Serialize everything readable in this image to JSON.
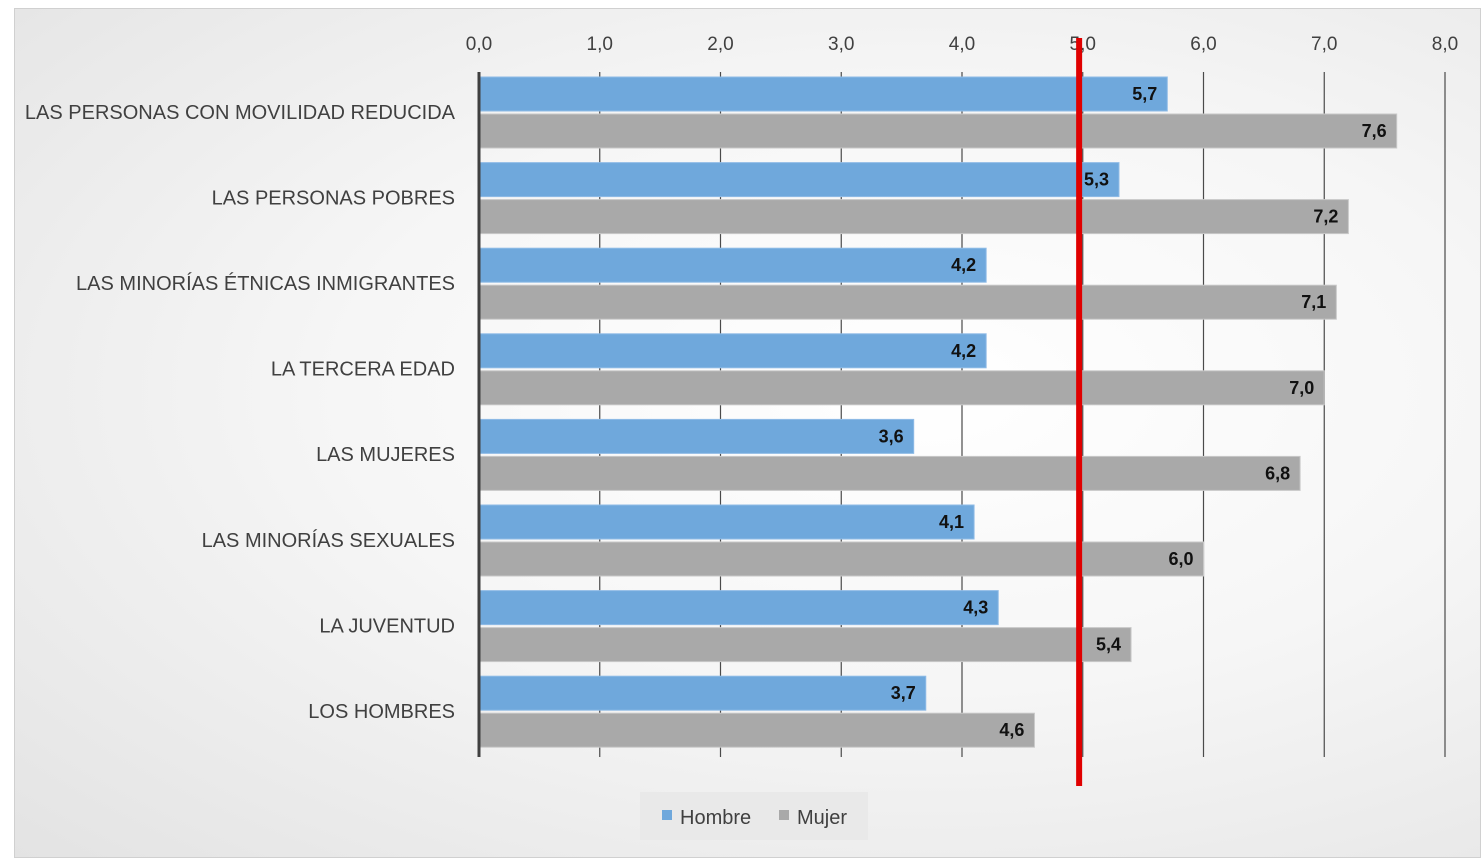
{
  "chart_data": {
    "type": "bar",
    "orientation": "horizontal",
    "title": "",
    "xlabel": "",
    "ylabel": "",
    "categories": [
      "LAS PERSONAS CON MOVILIDAD REDUCIDA",
      "LAS PERSONAS POBRES",
      "LAS MINORÍAS ÉTNICAS INMIGRANTES",
      "LA TERCERA EDAD",
      "LAS MUJERES",
      "LAS MINORÍAS SEXUALES",
      "LA JUVENTUD",
      "LOS HOMBRES"
    ],
    "series": [
      {
        "name": "Hombre",
        "color": "#6fa8dc",
        "values": [
          5.7,
          5.3,
          4.2,
          4.2,
          3.6,
          4.1,
          4.3,
          3.7
        ],
        "labels": [
          "5,7",
          "5,3",
          "4,2",
          "4,2",
          "3,6",
          "4,1",
          "4,3",
          "3,7"
        ]
      },
      {
        "name": "Mujer",
        "color": "#a9a9a9",
        "values": [
          7.6,
          7.2,
          7.1,
          7.0,
          6.8,
          6.0,
          5.4,
          4.6
        ],
        "labels": [
          "7,6",
          "7,2",
          "7,1",
          "7,0",
          "6,8",
          "6,0",
          "5,4",
          "4,6"
        ]
      }
    ],
    "xlim": [
      0,
      8
    ],
    "ticks": [
      0,
      1,
      2,
      3,
      4,
      5,
      6,
      7,
      8
    ],
    "tick_labels": [
      "0,0",
      "1,0",
      "2,0",
      "3,0",
      "4,0",
      "5,0",
      "6,0",
      "7,0",
      "8,0"
    ],
    "axis_position": "top",
    "reference_line": {
      "value": 4.97,
      "color": "#e00000"
    },
    "grid": true,
    "legend": "bottom"
  }
}
